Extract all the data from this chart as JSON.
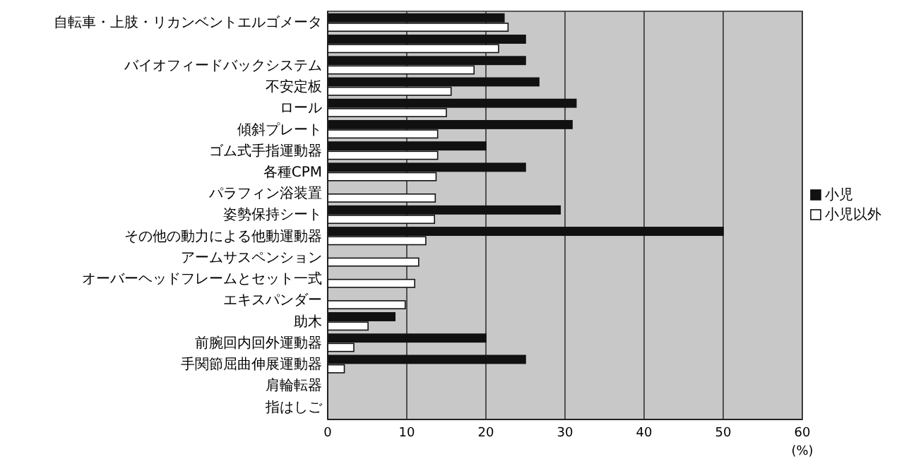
{
  "chart_data": {
    "type": "bar",
    "orientation": "horizontal",
    "categories": [
      "自転車・上肢・リカンベントエルゴメータ",
      null,
      "バイオフィードバックシステム",
      "不安定板",
      "ロール",
      "傾斜プレート",
      "ゴム式手指運動器",
      "各種CPM",
      "パラフィン浴装置",
      "姿勢保持シート",
      "その他の動力による他動運動器",
      "アームサスペンション",
      "オーバーヘッドフレームとセット一式",
      "エキスパンダー",
      "助木",
      "前腕回内回外運動器",
      "手関節屈曲伸展運動器",
      "肩輪転器",
      "指はしご"
    ],
    "series": [
      {
        "name": "小児",
        "color": "#111111",
        "values": [
          22.3,
          25,
          25,
          26.7,
          31.4,
          30.9,
          20,
          25,
          0,
          29.4,
          50,
          0,
          0,
          0,
          8.5,
          20,
          25,
          0,
          0
        ]
      },
      {
        "name": "小児以外",
        "color": "#ffffff",
        "values": [
          22.8,
          21.6,
          18.5,
          15.6,
          15,
          13.9,
          13.9,
          13.7,
          13.6,
          13.5,
          12.4,
          11.5,
          11,
          9.8,
          5.1,
          3.3,
          2.1,
          0,
          0
        ]
      }
    ],
    "xlim": [
      0,
      60
    ],
    "xticks": [
      0,
      10,
      20,
      30,
      40,
      50,
      60
    ],
    "xlabel": "(%)",
    "grid": "x",
    "legend": "right"
  }
}
